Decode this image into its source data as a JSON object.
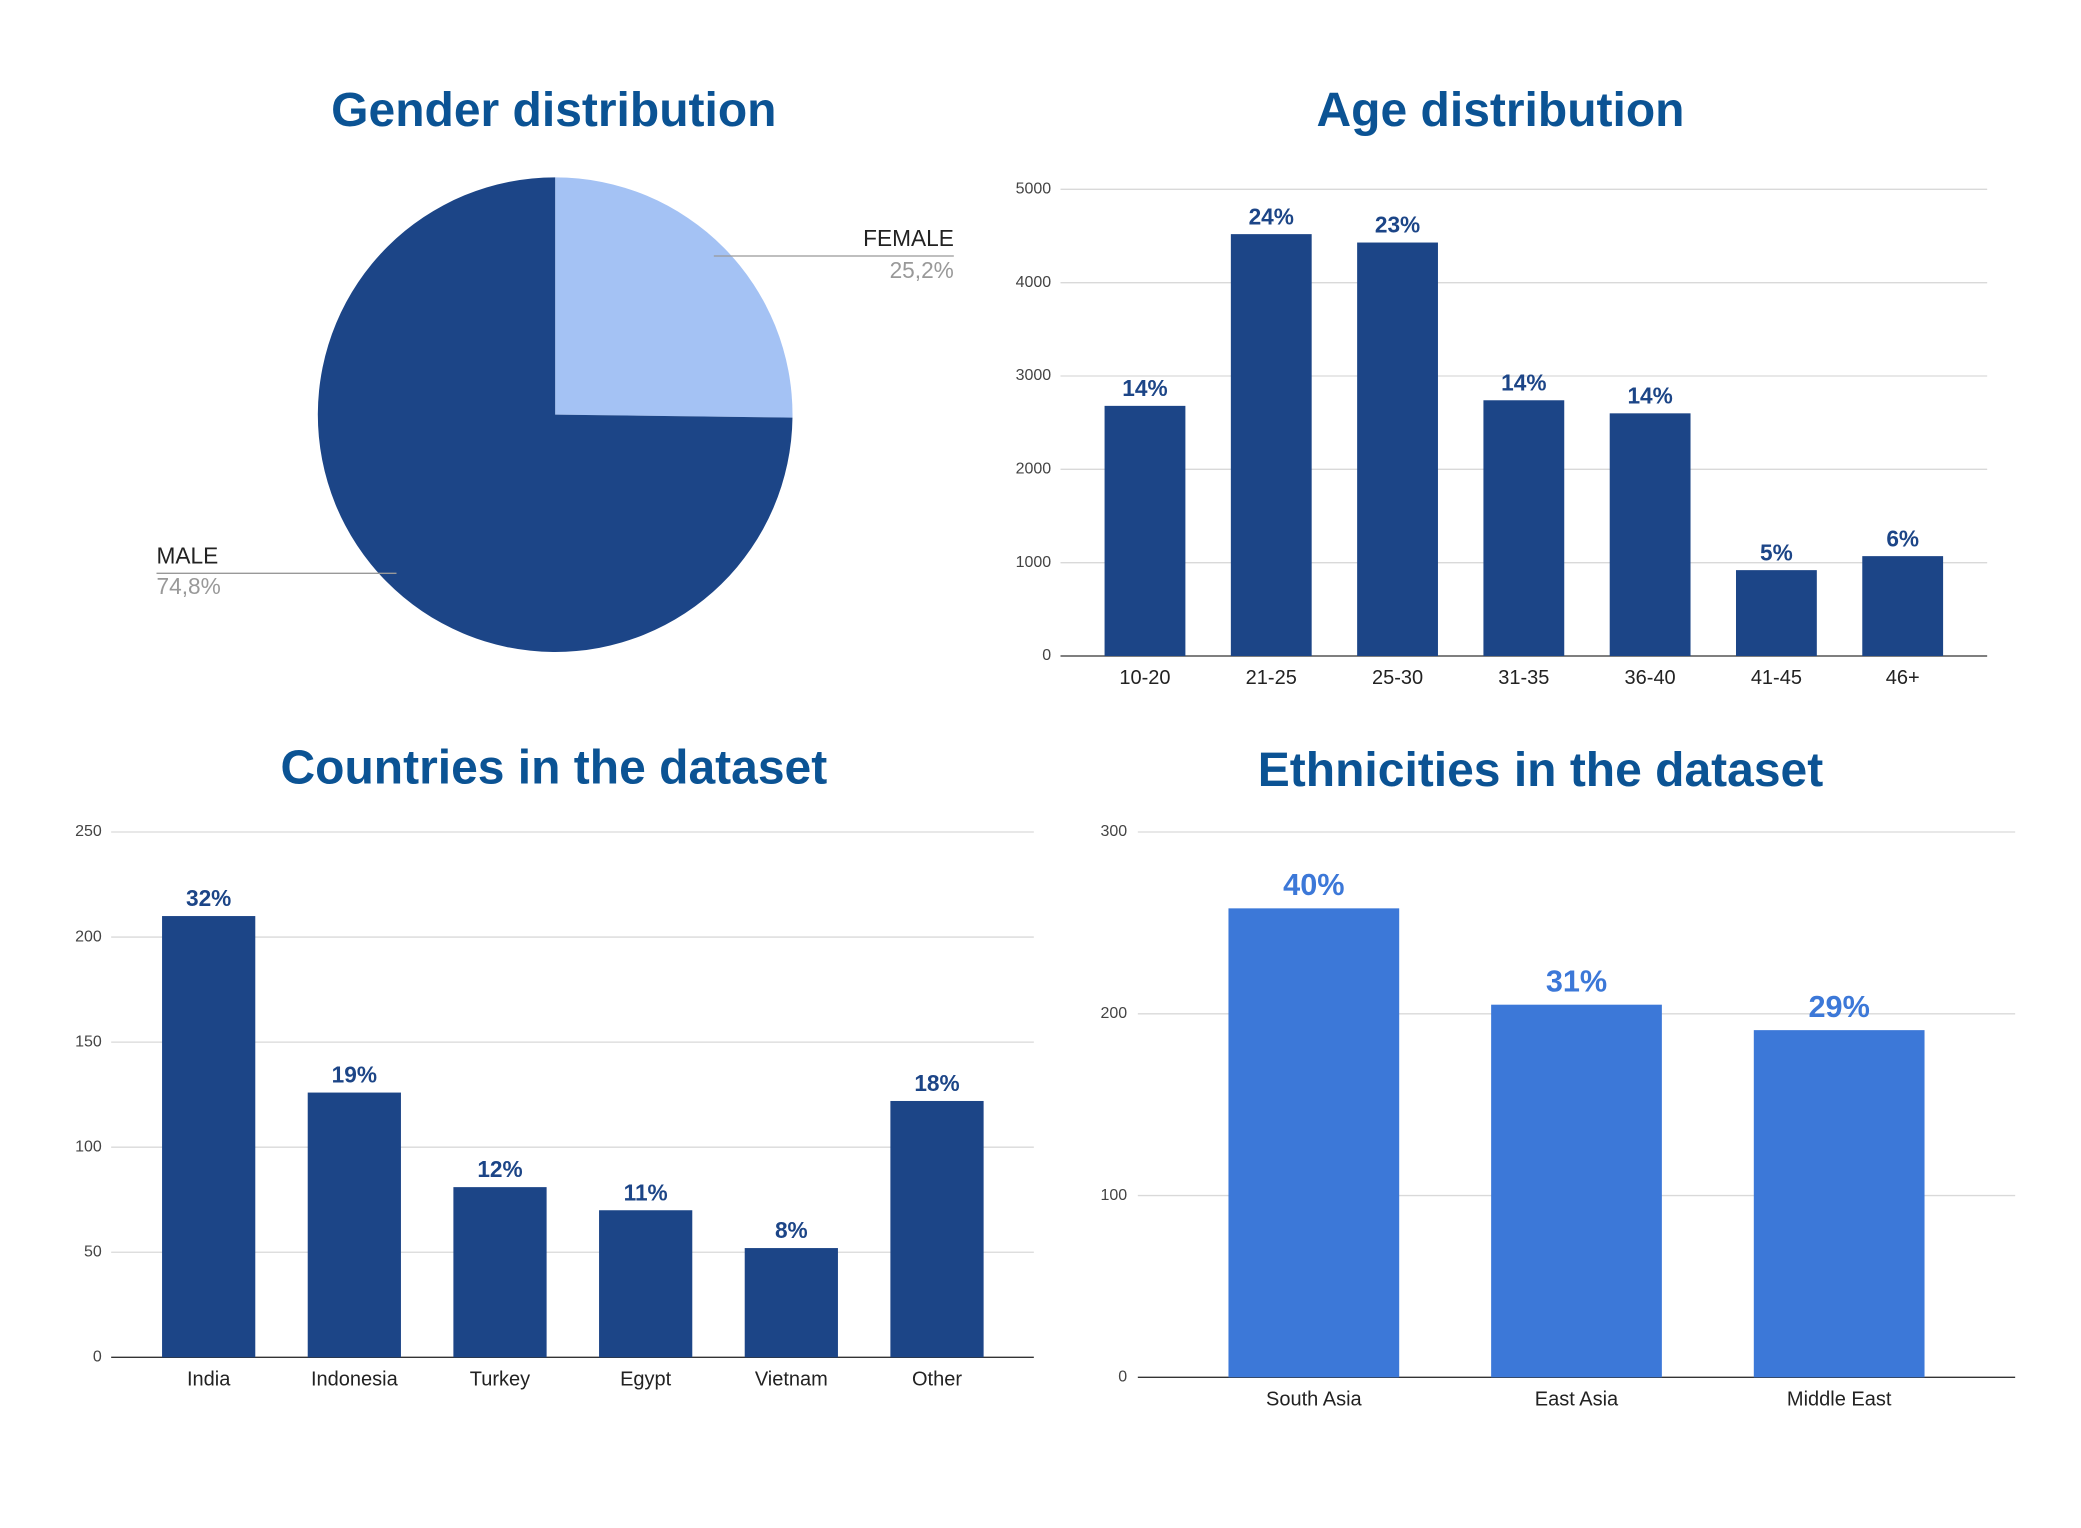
{
  "chart_data": [
    {
      "type": "pie",
      "title": "Gender distribution",
      "categories": [
        "MALE",
        "FEMALE"
      ],
      "values": [
        74.8,
        25.2
      ],
      "value_labels": [
        "74,8%",
        "25,2%"
      ],
      "colors": [
        "#1c4587",
        "#a4c2f4"
      ]
    },
    {
      "type": "bar",
      "title": "Age distribution",
      "categories": [
        "10-20",
        "21-25",
        "25-30",
        "31-35",
        "36-40",
        "41-45",
        "46+"
      ],
      "values": [
        2680,
        4520,
        4430,
        2740,
        2600,
        920,
        1070
      ],
      "percent_labels": [
        "14%",
        "24%",
        "23%",
        "14%",
        "14%",
        "5%",
        "6%"
      ],
      "color": "#1c4587",
      "ylim": [
        0,
        5000
      ],
      "yticks": [
        0,
        1000,
        2000,
        3000,
        4000,
        5000
      ],
      "grid": true
    },
    {
      "type": "bar",
      "title": "Countries in the dataset",
      "categories": [
        "India",
        "Indonesia",
        "Turkey",
        "Egypt",
        "Vietnam",
        "Other"
      ],
      "values": [
        210,
        126,
        81,
        70,
        52,
        122
      ],
      "percent_labels": [
        "32%",
        "19%",
        "12%",
        "11%",
        "8%",
        "18%"
      ],
      "color": "#1c4587",
      "ylim": [
        0,
        250
      ],
      "yticks": [
        0,
        50,
        100,
        150,
        200,
        250
      ],
      "grid": true
    },
    {
      "type": "bar",
      "title": "Ethnicities in the dataset",
      "categories": [
        "South Asia",
        "East Asia",
        "Middle East"
      ],
      "values": [
        258,
        205,
        191
      ],
      "percent_labels": [
        "40%",
        "31%",
        "29%"
      ],
      "color": "#3c78d8",
      "ylim": [
        0,
        300
      ],
      "yticks": [
        0,
        100,
        200,
        300
      ],
      "grid": true
    }
  ]
}
